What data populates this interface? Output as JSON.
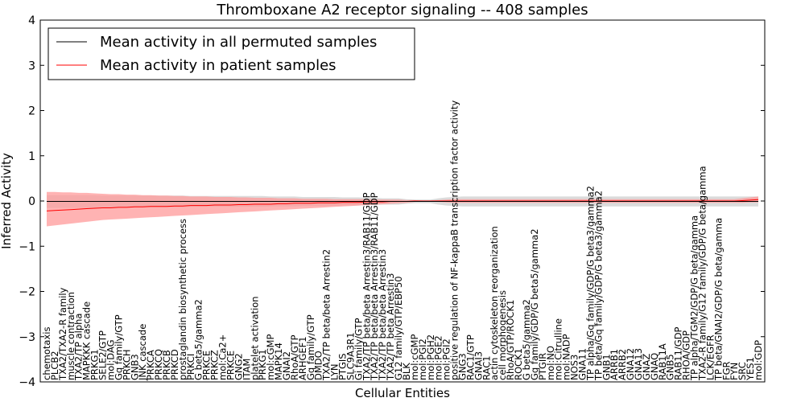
{
  "chart_data": {
    "type": "line",
    "title": "Thromboxane A2 receptor signaling -- 408 samples",
    "xlabel": "Cellular Entities",
    "ylabel": "Inferred Activity",
    "ylim": [
      -4,
      4
    ],
    "yticks": [
      -4,
      -3,
      -2,
      -1,
      0,
      1,
      2,
      3,
      4
    ],
    "ytick_labels": [
      "−4",
      "−3",
      "−2",
      "−1",
      "0",
      "1",
      "2",
      "3",
      "4"
    ],
    "legend": {
      "position": "top-left",
      "entries": [
        {
          "label": "Mean activity in all permuted samples",
          "color": "#000000"
        },
        {
          "label": "Mean activity in patient samples",
          "color": "#ff0000"
        }
      ]
    },
    "colors": {
      "permuted_band": "#cccccc",
      "patient_band": "#ff9999",
      "patient_line": "#ff0000",
      "permuted_line": "#000000"
    },
    "categories": [
      "chemotaxis",
      "PLCB2",
      "TXA2/TXA2-R family",
      "muscle contraction",
      "TXA2/TP alpha",
      "MAPKKK cascade",
      "PRKG1",
      "SELE2/GTP",
      "mol:DAG",
      "Gq family/GTP",
      "PRKCH",
      "GNB3",
      "JNK cascade",
      "PRKCA",
      "PRKCQ",
      "PRKCB",
      "PRKCD",
      "prostaglandin biosynthetic process",
      "PRKCI",
      "G beta5/gamma2",
      "PRKCE",
      "PRKCZ",
      "mol:Ca2+",
      "PRKCE",
      "GNG2",
      "ITAM",
      "platelet activation",
      "PRKG1",
      "mol:cGMP",
      "MAPK14",
      "GNAI2",
      "RhoA/GTP",
      "ARHGEF1",
      "Gq family/GTP",
      "DMDO",
      "TXA2/TP beta/beta Arrestin2",
      "LYN",
      "PTGIS",
      "SLC9A3R1",
      "Gi family/GTP",
      "TXA2/TP beta/beta Arrestin3/RAB11/GDP",
      "TXA2/TP beta/beta Arrestin3/RAB11/GDP",
      "TXA2/TP beta/beta Arrestin3",
      "TXA2/TP beta Arrestin3",
      "G12 family/GTP/EBP50",
      "BLK",
      "mol:cGMP",
      "mol:PGI2",
      "mol:PGH2",
      "mol:PGE2",
      "mol:PGI2",
      "positive regulation of NF-kappaB transcription factor activity",
      "GNG3",
      "RAC1/GTP",
      "GNAI3",
      "RAC1",
      "actin cytoskeleton reorganization",
      "cell morphogenesis",
      "RhoA/GTP/ROCK1",
      "ROCK1",
      "G beta5/gamma2",
      "Gq family/GDP/G beta5/gamma2",
      "PTGIR",
      "mol:NO",
      "mol:Citrulline",
      "mol:NADP",
      "NOS3",
      "GNA11",
      "TP alpha/Gq family/GDP/G beta3/gamma2",
      "TP beta/Gq family/GDP/G beta3/gamma2",
      "GNB1",
      "ARRB1",
      "ARRB2",
      "GNA12",
      "GNA13",
      "GNAZ",
      "GNAQ",
      "RAB11A",
      "GNB5",
      "RAB11/GDP",
      "RHOA/GDP",
      "TP alpha/TGM2/GDP/G beta/gamma",
      "TXA2-R family/G12 family/GDP/G beta/gamma",
      "LCK/EGFR",
      "TP beta/GNAI2/GDP/G beta/gamma",
      "FGR",
      "FYN",
      "SRC",
      "YES1",
      "mol:GDP"
    ],
    "series": [
      {
        "name": "Mean activity in all permuted samples",
        "values": [
          -0.01,
          -0.01,
          -0.01,
          -0.01,
          -0.01,
          -0.01,
          -0.01,
          -0.01,
          -0.01,
          -0.01,
          -0.01,
          -0.01,
          -0.01,
          -0.01,
          -0.01,
          -0.01,
          -0.01,
          -0.01,
          -0.01,
          -0.01,
          -0.01,
          -0.01,
          -0.01,
          -0.01,
          -0.01,
          -0.01,
          -0.01,
          -0.01,
          -0.01,
          -0.01,
          -0.01,
          -0.01,
          -0.01,
          -0.01,
          -0.01,
          -0.01,
          -0.01,
          -0.01,
          -0.01,
          -0.01,
          -0.01,
          -0.01,
          -0.01,
          -0.01,
          -0.01,
          -0.01,
          -0.01,
          -0.01,
          -0.01,
          -0.01,
          -0.01,
          -0.01,
          -0.01,
          -0.01,
          -0.01,
          -0.01,
          -0.01,
          -0.01,
          -0.01,
          -0.01,
          -0.01,
          -0.01,
          -0.01,
          -0.01,
          -0.01,
          -0.01,
          -0.01,
          -0.01,
          -0.01,
          -0.01,
          -0.01,
          -0.01,
          -0.01,
          -0.01,
          -0.01,
          -0.01,
          -0.01,
          -0.01,
          -0.01,
          -0.01,
          -0.01,
          -0.01,
          -0.01,
          -0.01,
          -0.01,
          -0.01,
          -0.01,
          -0.01,
          -0.01,
          -0.01
        ],
        "lower": [
          -0.15,
          -0.15,
          -0.15,
          -0.15,
          -0.15,
          -0.15,
          -0.15,
          -0.14,
          -0.14,
          -0.14,
          -0.14,
          -0.14,
          -0.14,
          -0.14,
          -0.14,
          -0.14,
          -0.14,
          -0.14,
          -0.13,
          -0.13,
          -0.13,
          -0.13,
          -0.13,
          -0.13,
          -0.13,
          -0.13,
          -0.13,
          -0.13,
          -0.12,
          -0.12,
          -0.12,
          -0.12,
          -0.11,
          -0.11,
          -0.11,
          -0.11,
          -0.11,
          -0.1,
          -0.1,
          -0.1,
          -0.09,
          -0.09,
          -0.08,
          -0.08,
          -0.08,
          -0.06,
          -0.05,
          -0.05,
          -0.05,
          -0.08,
          -0.1,
          -0.11,
          -0.12,
          -0.12,
          -0.12,
          -0.12,
          -0.12,
          -0.12,
          -0.12,
          -0.12,
          -0.12,
          -0.12,
          -0.12,
          -0.12,
          -0.12,
          -0.12,
          -0.12,
          -0.12,
          -0.12,
          -0.12,
          -0.12,
          -0.12,
          -0.12,
          -0.12,
          -0.12,
          -0.12,
          -0.12,
          -0.12,
          -0.12,
          -0.12,
          -0.12,
          -0.12,
          -0.12,
          -0.12,
          -0.12,
          -0.12,
          -0.12,
          -0.12,
          -0.12,
          -0.12
        ],
        "upper": [
          0.13,
          0.13,
          0.13,
          0.13,
          0.13,
          0.13,
          0.13,
          0.12,
          0.12,
          0.12,
          0.12,
          0.12,
          0.12,
          0.12,
          0.12,
          0.12,
          0.12,
          0.12,
          0.11,
          0.11,
          0.11,
          0.11,
          0.11,
          0.11,
          0.11,
          0.11,
          0.11,
          0.11,
          0.1,
          0.1,
          0.1,
          0.1,
          0.09,
          0.09,
          0.09,
          0.09,
          0.09,
          0.08,
          0.08,
          0.08,
          0.07,
          0.07,
          0.06,
          0.06,
          0.06,
          0.04,
          0.03,
          0.03,
          0.03,
          0.06,
          0.08,
          0.09,
          0.1,
          0.1,
          0.1,
          0.1,
          0.1,
          0.1,
          0.1,
          0.1,
          0.1,
          0.1,
          0.1,
          0.1,
          0.1,
          0.1,
          0.1,
          0.1,
          0.1,
          0.1,
          0.1,
          0.1,
          0.1,
          0.1,
          0.1,
          0.1,
          0.1,
          0.1,
          0.1,
          0.1,
          0.1,
          0.1,
          0.1,
          0.1,
          0.1,
          0.1,
          0.1,
          0.1,
          0.1,
          0.1
        ]
      },
      {
        "name": "Mean activity in patient samples",
        "values": [
          -0.22,
          -0.21,
          -0.2,
          -0.19,
          -0.18,
          -0.17,
          -0.16,
          -0.15,
          -0.15,
          -0.14,
          -0.14,
          -0.13,
          -0.13,
          -0.12,
          -0.12,
          -0.12,
          -0.11,
          -0.11,
          -0.1,
          -0.1,
          -0.1,
          -0.09,
          -0.09,
          -0.09,
          -0.08,
          -0.08,
          -0.07,
          -0.07,
          -0.07,
          -0.06,
          -0.06,
          -0.05,
          -0.05,
          -0.05,
          -0.04,
          -0.04,
          -0.04,
          -0.03,
          -0.03,
          -0.03,
          -0.02,
          -0.02,
          -0.02,
          -0.01,
          -0.01,
          -0.01,
          0.0,
          0.0,
          0.0,
          0.0,
          0.0,
          0.0,
          0.0,
          0.0,
          0.0,
          0.0,
          0.0,
          0.0,
          0.0,
          0.0,
          0.0,
          0.0,
          0.0,
          0.0,
          0.0,
          0.0,
          0.0,
          0.0,
          0.0,
          0.0,
          0.0,
          0.0,
          0.0,
          0.0,
          0.0,
          0.0,
          0.0,
          0.0,
          0.0,
          0.0,
          0.0,
          0.0,
          0.0,
          0.0,
          0.0,
          0.0,
          0.0,
          0.01,
          0.02,
          0.03
        ],
        "lower": [
          -0.56,
          -0.54,
          -0.52,
          -0.5,
          -0.48,
          -0.46,
          -0.44,
          -0.42,
          -0.41,
          -0.4,
          -0.39,
          -0.38,
          -0.37,
          -0.36,
          -0.35,
          -0.34,
          -0.33,
          -0.32,
          -0.31,
          -0.3,
          -0.29,
          -0.28,
          -0.27,
          -0.26,
          -0.25,
          -0.24,
          -0.23,
          -0.22,
          -0.21,
          -0.2,
          -0.19,
          -0.18,
          -0.17,
          -0.16,
          -0.15,
          -0.14,
          -0.13,
          -0.12,
          -0.11,
          -0.1,
          -0.09,
          -0.08,
          -0.07,
          -0.06,
          -0.05,
          -0.04,
          -0.02,
          -0.01,
          -0.01,
          -0.02,
          -0.03,
          -0.04,
          -0.04,
          -0.04,
          -0.04,
          -0.04,
          -0.04,
          -0.04,
          -0.04,
          -0.04,
          -0.04,
          -0.04,
          -0.04,
          -0.04,
          -0.04,
          -0.04,
          -0.04,
          -0.04,
          -0.04,
          -0.04,
          -0.04,
          -0.04,
          -0.04,
          -0.04,
          -0.04,
          -0.04,
          -0.04,
          -0.04,
          -0.04,
          -0.04,
          -0.04,
          -0.04,
          -0.04,
          -0.04,
          -0.04,
          -0.04,
          -0.04,
          -0.04,
          -0.03,
          -0.03
        ],
        "upper": [
          0.2,
          0.2,
          0.19,
          0.19,
          0.18,
          0.18,
          0.17,
          0.16,
          0.15,
          0.15,
          0.14,
          0.14,
          0.13,
          0.13,
          0.12,
          0.12,
          0.11,
          0.11,
          0.1,
          0.1,
          0.1,
          0.09,
          0.09,
          0.09,
          0.08,
          0.08,
          0.07,
          0.07,
          0.07,
          0.06,
          0.06,
          0.06,
          0.05,
          0.05,
          0.05,
          0.05,
          0.04,
          0.04,
          0.04,
          0.04,
          0.04,
          0.03,
          0.03,
          0.03,
          0.03,
          0.02,
          0.02,
          0.01,
          0.01,
          0.02,
          0.03,
          0.04,
          0.04,
          0.04,
          0.04,
          0.04,
          0.04,
          0.04,
          0.04,
          0.04,
          0.04,
          0.04,
          0.04,
          0.04,
          0.04,
          0.04,
          0.04,
          0.04,
          0.04,
          0.04,
          0.04,
          0.04,
          0.04,
          0.04,
          0.04,
          0.04,
          0.04,
          0.04,
          0.04,
          0.04,
          0.04,
          0.04,
          0.04,
          0.04,
          0.04,
          0.04,
          0.04,
          0.06,
          0.08,
          0.1
        ]
      }
    ]
  }
}
